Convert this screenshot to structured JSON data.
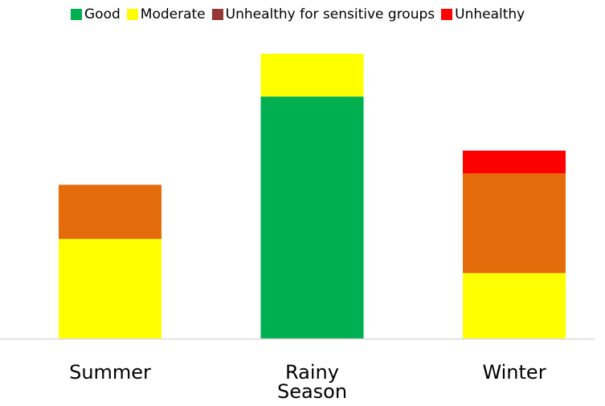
{
  "chart_data": {
    "type": "stacked_bar",
    "categories": [
      "Summer",
      "Rainy Season",
      "Winter"
    ],
    "series": [
      {
        "name": "Good",
        "color": "#00b050",
        "values": [
          0,
          85,
          0
        ]
      },
      {
        "name": "Moderate",
        "color": "#ffff00",
        "values": [
          35,
          15,
          23
        ]
      },
      {
        "name": "Unhealthy for sensitive groups",
        "color": "#e46c0a",
        "legend_color": "#953735",
        "values": [
          19,
          0,
          35
        ]
      },
      {
        "name": "Unhealthy",
        "color": "#ff0000",
        "values": [
          0,
          0,
          8
        ]
      }
    ],
    "ylim": [
      0,
      100
    ],
    "legend": "top",
    "grid": false
  }
}
